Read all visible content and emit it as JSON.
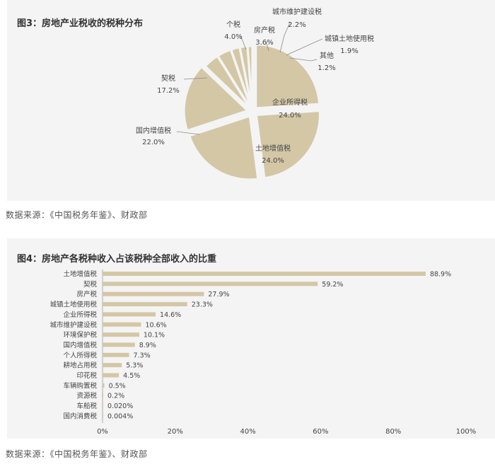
{
  "chart_data": [
    {
      "type": "pie",
      "title": "图3：房地产业税收的税种分布",
      "slices": [
        {
          "label": "企业所得税",
          "value": 24.0,
          "display": "24.0%"
        },
        {
          "label": "土地增值税",
          "value": 24.0,
          "display": "24.0%"
        },
        {
          "label": "国内增值税",
          "value": 22.0,
          "display": "22.0%"
        },
        {
          "label": "契税",
          "value": 17.2,
          "display": "17.2%"
        },
        {
          "label": "个税",
          "value": 4.0,
          "display": "4.0%"
        },
        {
          "label": "房产税",
          "value": 3.6,
          "display": "3.6%"
        },
        {
          "label": "城市维护建设税",
          "value": 2.2,
          "display": "2.2%"
        },
        {
          "label": "城镇土地使用税",
          "value": 1.9,
          "display": "1.9%"
        },
        {
          "label": "其他",
          "value": 1.2,
          "display": "1.2%"
        }
      ],
      "colors": {
        "slice": "#d4c7a6",
        "separator": "#f4f4f4",
        "leader": "#8a8a8a"
      }
    },
    {
      "type": "bar",
      "orientation": "horizontal",
      "title": "图4：房地产各税种收入占该税种全部收入的比重",
      "categories": [
        "土地增值税",
        "契税",
        "房产税",
        "城镇土地使用税",
        "企业所得税",
        "城市维护建设税",
        "环境保护税",
        "国内增值税",
        "个人所得税",
        "耕地占用税",
        "印花税",
        "车辆购置税",
        "资源税",
        "车船税",
        "国内消费税"
      ],
      "values": [
        88.9,
        59.2,
        27.9,
        23.3,
        14.6,
        10.6,
        10.1,
        8.9,
        7.3,
        5.3,
        4.5,
        0.5,
        0.2,
        0.02,
        0.004
      ],
      "value_labels": [
        "88.9%",
        "59.2%",
        "27.9%",
        "23.3%",
        "14.6%",
        "10.6%",
        "10.1%",
        "8.9%",
        "7.3%",
        "5.3%",
        "4.5%",
        "0.5%",
        "0.2%",
        "0.020%",
        "0.004%"
      ],
      "xlim": [
        0,
        100
      ],
      "xticks": [
        0,
        20,
        40,
        60,
        80,
        100
      ],
      "xtick_labels": [
        "0%",
        "20%",
        "40%",
        "60%",
        "80%",
        "100%"
      ],
      "grid": false,
      "colors": {
        "bar": "#d4c7a6"
      }
    }
  ],
  "sources": [
    "数据来源：《中国税务年鉴》、财政部",
    "数据来源：《中国税务年鉴》、财政部"
  ]
}
